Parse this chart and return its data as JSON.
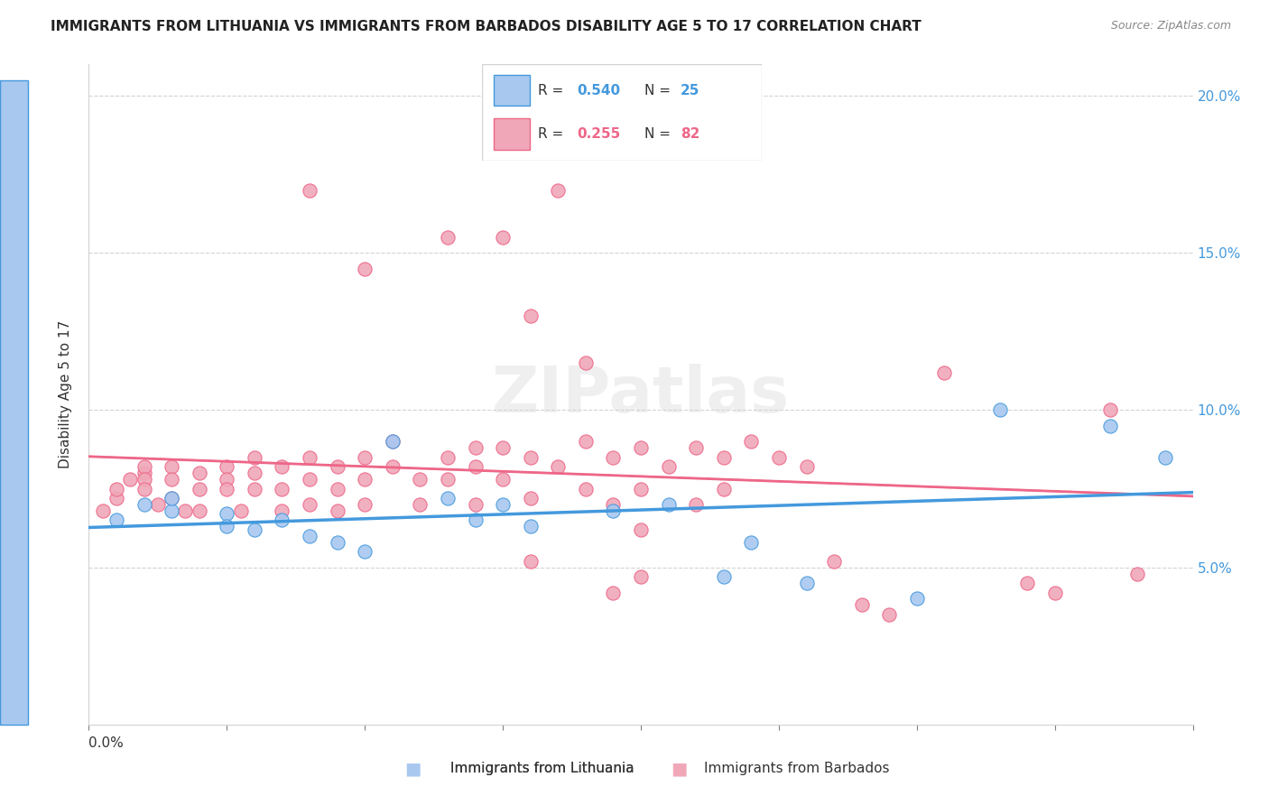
{
  "title": "IMMIGRANTS FROM LITHUANIA VS IMMIGRANTS FROM BARBADOS DISABILITY AGE 5 TO 17 CORRELATION CHART",
  "source": "Source: ZipAtlas.com",
  "ylabel": "Disability Age 5 to 17",
  "legend_blue_r": "0.540",
  "legend_blue_n": "25",
  "legend_pink_r": "0.255",
  "legend_pink_n": "82",
  "legend_blue_label": "Immigrants from Lithuania",
  "legend_pink_label": "Immigrants from Barbados",
  "blue_color": "#a8c8f0",
  "pink_color": "#f0a8b8",
  "blue_line_color": "#4499dd",
  "pink_line_color": "#ee6688",
  "pink_dash_color": "#ddaaaa",
  "watermark": "ZIPatlas",
  "blue_scatter_x": [
    0.001,
    0.002,
    0.003,
    0.003,
    0.005,
    0.005,
    0.006,
    0.007,
    0.008,
    0.009,
    0.01,
    0.011,
    0.013,
    0.014,
    0.015,
    0.016,
    0.019,
    0.021,
    0.023,
    0.024,
    0.026,
    0.03,
    0.033,
    0.037,
    0.039
  ],
  "blue_scatter_y": [
    0.065,
    0.07,
    0.068,
    0.072,
    0.067,
    0.063,
    0.062,
    0.065,
    0.06,
    0.058,
    0.055,
    0.09,
    0.072,
    0.065,
    0.07,
    0.063,
    0.068,
    0.07,
    0.047,
    0.058,
    0.045,
    0.04,
    0.1,
    0.095,
    0.085
  ],
  "pink_scatter_x": [
    0.0005,
    0.001,
    0.001,
    0.0015,
    0.002,
    0.002,
    0.002,
    0.002,
    0.0025,
    0.003,
    0.003,
    0.003,
    0.0035,
    0.004,
    0.004,
    0.004,
    0.005,
    0.005,
    0.005,
    0.0055,
    0.006,
    0.006,
    0.006,
    0.007,
    0.007,
    0.007,
    0.008,
    0.008,
    0.008,
    0.009,
    0.009,
    0.009,
    0.01,
    0.01,
    0.01,
    0.011,
    0.011,
    0.012,
    0.012,
    0.013,
    0.013,
    0.014,
    0.014,
    0.015,
    0.015,
    0.016,
    0.016,
    0.017,
    0.018,
    0.018,
    0.019,
    0.019,
    0.02,
    0.02,
    0.021,
    0.022,
    0.022,
    0.023,
    0.023,
    0.024,
    0.025,
    0.026,
    0.016,
    0.015,
    0.013,
    0.018,
    0.019,
    0.02,
    0.01,
    0.008,
    0.017,
    0.014,
    0.016,
    0.02,
    0.029,
    0.028,
    0.031,
    0.027,
    0.035,
    0.037,
    0.034,
    0.038
  ],
  "pink_scatter_y": [
    0.068,
    0.072,
    0.075,
    0.078,
    0.08,
    0.082,
    0.078,
    0.075,
    0.07,
    0.082,
    0.078,
    0.072,
    0.068,
    0.08,
    0.075,
    0.068,
    0.082,
    0.078,
    0.075,
    0.068,
    0.085,
    0.08,
    0.075,
    0.082,
    0.075,
    0.068,
    0.085,
    0.078,
    0.07,
    0.082,
    0.075,
    0.068,
    0.085,
    0.078,
    0.07,
    0.09,
    0.082,
    0.078,
    0.07,
    0.085,
    0.078,
    0.082,
    0.07,
    0.088,
    0.078,
    0.085,
    0.072,
    0.082,
    0.09,
    0.075,
    0.085,
    0.07,
    0.088,
    0.075,
    0.082,
    0.088,
    0.07,
    0.085,
    0.075,
    0.09,
    0.085,
    0.082,
    0.13,
    0.155,
    0.155,
    0.115,
    0.042,
    0.062,
    0.145,
    0.17,
    0.17,
    0.088,
    0.052,
    0.047,
    0.035,
    0.038,
    0.112,
    0.052,
    0.042,
    0.1,
    0.045,
    0.048
  ]
}
